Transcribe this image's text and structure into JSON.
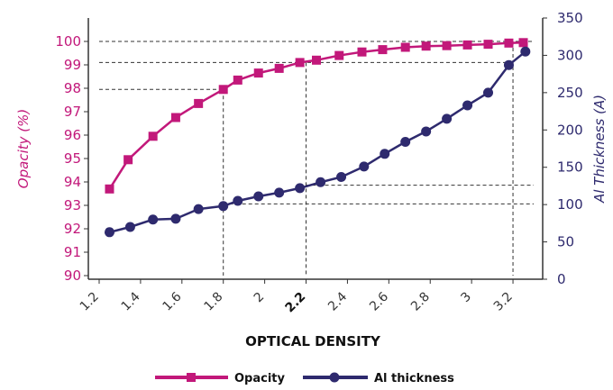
{
  "chart_data": {
    "type": "line",
    "xlabel": "OPTICAL DENSITY",
    "ylabel_left": "Opacity (%)",
    "ylabel_right": "Al Thickness (A)",
    "xlim": [
      1.2,
      3.3
    ],
    "ylim_left": [
      90,
      100.3
    ],
    "ylim_right": [
      0,
      350
    ],
    "x_ticks": [
      "1.2",
      "1.4",
      "1.6",
      "1.8",
      "2",
      "2.2",
      "2.4",
      "2.6",
      "2.8",
      "3",
      "3.2"
    ],
    "x_tick_bold": "2.2",
    "y_left_ticks": [
      "90",
      "91",
      "92",
      "93",
      "94",
      "95",
      "96",
      "97",
      "98",
      "99",
      "100"
    ],
    "y_right_ticks": [
      "0",
      "50",
      "100",
      "150",
      "200",
      "250",
      "300",
      "350"
    ],
    "legend_position": "bottom",
    "grid": false,
    "reference_lines": [
      {
        "axis": "left",
        "y": 100,
        "from_x": 1.2,
        "to_x": 3.3
      },
      {
        "axis": "left",
        "y": 99.1,
        "from_x": 1.2,
        "to_x": 3.2
      },
      {
        "axis": "left",
        "y": 97.95,
        "from_x": 1.2,
        "to_x": 1.8
      },
      {
        "axis": "right",
        "y": 126,
        "from_x": 2.2,
        "to_x": 3.3
      },
      {
        "axis": "right",
        "y": 101,
        "from_x": 1.8,
        "to_x": 3.3
      },
      {
        "axis": "x",
        "x": 1.8,
        "from_y": 97.95,
        "to_y": 90
      },
      {
        "axis": "x",
        "x": 2.2,
        "from_y": 99.1,
        "to_y": 90
      },
      {
        "axis": "x",
        "x": 3.2,
        "from_y": 100,
        "to_y": 90
      }
    ],
    "series": [
      {
        "name": "Opacity",
        "axis": "left",
        "color": "#c2187a",
        "marker": "square",
        "x": [
          1.25,
          1.34,
          1.46,
          1.57,
          1.68,
          1.8,
          1.87,
          1.97,
          2.07,
          2.17,
          2.25,
          2.36,
          2.47,
          2.57,
          2.68,
          2.78,
          2.88,
          2.98,
          3.08,
          3.18,
          3.25
        ],
        "y": [
          93.7,
          94.95,
          95.95,
          96.75,
          97.35,
          97.95,
          98.35,
          98.65,
          98.85,
          99.1,
          99.2,
          99.4,
          99.55,
          99.65,
          99.75,
          99.8,
          99.82,
          99.85,
          99.88,
          99.93,
          99.95
        ]
      },
      {
        "name": "Al thickness",
        "axis": "right",
        "color": "#2e2a6e",
        "marker": "circle",
        "x": [
          1.25,
          1.35,
          1.46,
          1.57,
          1.68,
          1.8,
          1.87,
          1.97,
          2.07,
          2.17,
          2.27,
          2.37,
          2.48,
          2.58,
          2.68,
          2.78,
          2.88,
          2.98,
          3.08,
          3.18,
          3.26
        ],
        "y": [
          63,
          70,
          80,
          81,
          94,
          98,
          105,
          111,
          116,
          122,
          130,
          137,
          151,
          168,
          184,
          198,
          215,
          233,
          250,
          287,
          305
        ]
      }
    ]
  }
}
